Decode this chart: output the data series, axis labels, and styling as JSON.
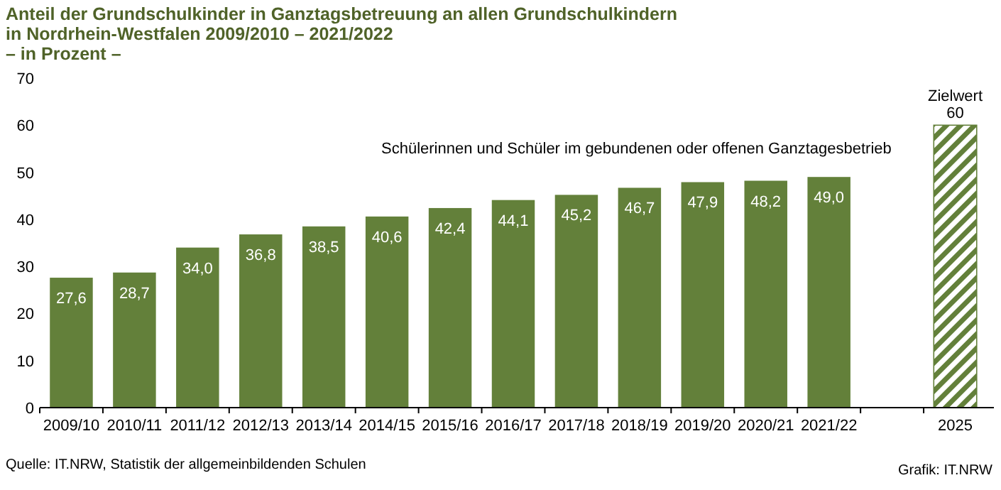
{
  "chart_data": {
    "type": "bar",
    "title": "Anteil der Grundschulkinder in Ganztagsbetreuung an allen Grundschulkindern\nin Nordrhein-Westfalen 2009/2010 – 2021/2022",
    "subtitle": "– in Prozent –",
    "categories": [
      "2009/10",
      "2010/11",
      "2011/12",
      "2012/13",
      "2013/14",
      "2014/15",
      "2015/16",
      "2016/17",
      "2017/18",
      "2018/19",
      "2019/20",
      "2020/21",
      "2021/22",
      null,
      "2025"
    ],
    "series": [
      {
        "color": "#63803a",
        "values": [
          27.6,
          28.7,
          34.0,
          36.8,
          38.5,
          40.6,
          42.4,
          44.1,
          45.2,
          46.7,
          47.9,
          48.2,
          49.0,
          null,
          null
        ],
        "value_labels": [
          "27,6",
          "28,7",
          "34,0",
          "36,8",
          "38,5",
          "40,6",
          "42,4",
          "44,1",
          "45,2",
          "46,7",
          "47,9",
          "48,2",
          "49,0",
          null,
          null
        ]
      },
      {
        "name": "Zielwert",
        "color": "#63803a",
        "values": [
          null,
          null,
          null,
          null,
          null,
          null,
          null,
          null,
          null,
          null,
          null,
          null,
          null,
          null,
          60
        ],
        "value_labels": [
          null,
          null,
          null,
          null,
          null,
          null,
          null,
          null,
          null,
          null,
          null,
          null,
          null,
          null,
          "60"
        ]
      }
    ],
    "ylim": [
      0,
      70
    ],
    "yticks": [
      0,
      10,
      20,
      30,
      40,
      50,
      60,
      70
    ],
    "grid": false,
    "annotations": [
      "Schülerinnen und Schüler im gebundenen oder offenen Ganztagesbetrieb",
      "Quelle: IT.NRW, Statistik der allgemeinbildenden Schulen",
      "Grafik: IT.NRW"
    ]
  }
}
